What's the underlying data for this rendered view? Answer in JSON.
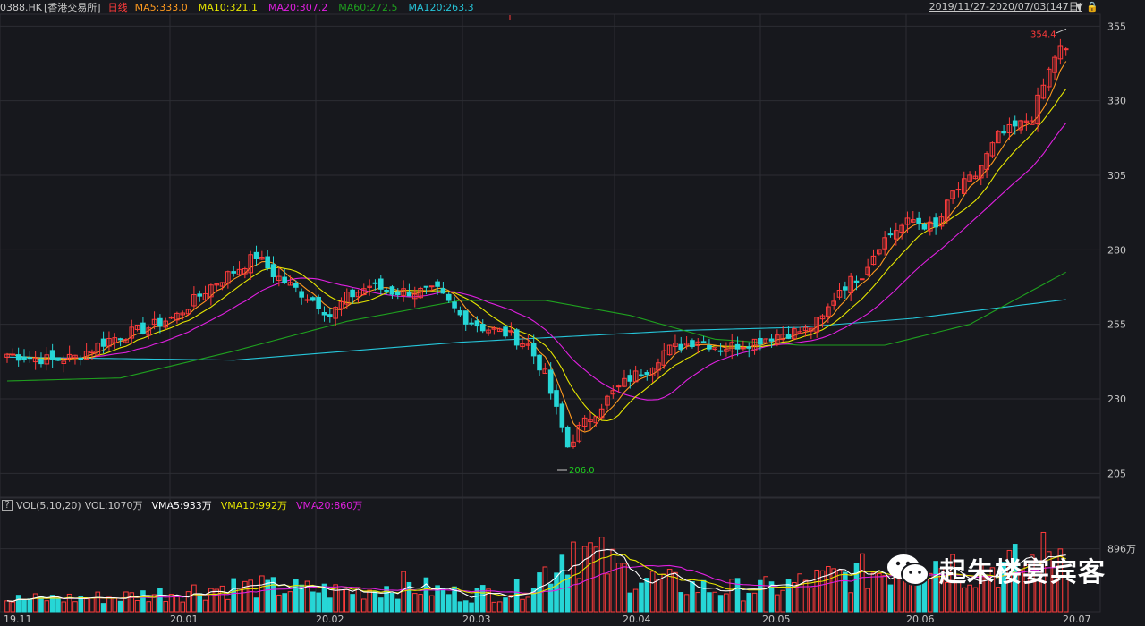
{
  "header": {
    "symbol": "0388.HK",
    "exchange": "[香港交易所]",
    "period": "日线",
    "ma5": "MA5:333.0",
    "ma10": "MA10:321.1",
    "ma20": "MA20:307.2",
    "ma60": "MA60:272.5",
    "ma120": "MA120:263.3",
    "date_range": "2019/11/27-2020/07/03(147日)"
  },
  "volume_header": {
    "help": "?",
    "title": "VOL(5,10,20)",
    "vol": "VOL:1070万",
    "vma5": "VMA5:933万",
    "vma10": "VMA10:992万",
    "vma20": "VMA20:860万"
  },
  "watermark": "起朱楼宴宾客",
  "colors": {
    "up": "#ff3b3b",
    "down": "#26d6d6",
    "ma5": "#ff9a1f",
    "ma10": "#e6e600",
    "ma20": "#e020e0",
    "ma60": "#1fa01f",
    "ma120": "#26c6da",
    "grid": "#2c2d33",
    "background": "#17181d"
  },
  "chart_data": {
    "type": "candlestick",
    "price_axis": {
      "ticks": [
        355,
        330,
        305,
        280,
        255,
        230,
        205
      ],
      "ylim": [
        197,
        359
      ]
    },
    "volume_axis": {
      "tick_label": "896万",
      "tick_value": 896,
      "ylim": [
        0,
        1400
      ]
    },
    "x_labels": [
      "19.11",
      "20.01",
      "20.02",
      "20.03",
      "20.04",
      "20.05",
      "20.06",
      "20.07"
    ],
    "annotations": {
      "high": "354.4",
      "low": "206.0",
      "high_value": 354.4,
      "low_value": 206.0
    },
    "trading_days": 147,
    "close_anchors": [
      [
        0,
        245
      ],
      [
        8,
        243
      ],
      [
        12,
        244
      ],
      [
        18,
        250
      ],
      [
        25,
        254
      ],
      [
        30,
        258
      ],
      [
        36,
        268
      ],
      [
        41,
        274
      ],
      [
        44,
        278
      ],
      [
        47,
        272
      ],
      [
        50,
        268
      ],
      [
        55,
        262
      ],
      [
        57,
        258
      ],
      [
        60,
        264
      ],
      [
        64,
        268
      ],
      [
        68,
        266
      ],
      [
        72,
        266
      ],
      [
        76,
        266
      ],
      [
        80,
        258
      ],
      [
        84,
        254
      ],
      [
        88,
        252
      ],
      [
        92,
        248
      ],
      [
        95,
        238
      ],
      [
        97,
        226
      ],
      [
        99,
        214
      ],
      [
        101,
        220
      ],
      [
        104,
        226
      ],
      [
        107,
        232
      ],
      [
        110,
        237
      ],
      [
        113,
        240
      ],
      [
        116,
        246
      ],
      [
        119,
        248
      ],
      [
        122,
        250
      ],
      [
        126,
        247
      ],
      [
        131,
        249
      ],
      [
        137,
        252
      ],
      [
        141,
        253
      ],
      [
        144,
        257
      ],
      [
        147,
        267
      ],
      [
        151,
        272
      ],
      [
        154,
        282
      ],
      [
        157,
        287
      ],
      [
        160,
        290
      ],
      [
        164,
        287
      ],
      [
        167,
        299
      ],
      [
        171,
        305
      ],
      [
        175,
        318
      ],
      [
        179,
        322
      ],
      [
        181,
        325
      ],
      [
        183,
        335
      ],
      [
        185,
        345
      ],
      [
        187,
        350
      ]
    ],
    "volume_anchors": [
      [
        0,
        180
      ],
      [
        20,
        220
      ],
      [
        40,
        380
      ],
      [
        60,
        300
      ],
      [
        70,
        400
      ],
      [
        80,
        260
      ],
      [
        90,
        320
      ],
      [
        95,
        600
      ],
      [
        100,
        1050
      ],
      [
        103,
        850
      ],
      [
        108,
        620
      ],
      [
        115,
        450
      ],
      [
        125,
        330
      ],
      [
        135,
        350
      ],
      [
        145,
        500
      ],
      [
        155,
        620
      ],
      [
        165,
        780
      ],
      [
        170,
        620
      ],
      [
        180,
        700
      ],
      [
        187,
        1000
      ]
    ]
  }
}
